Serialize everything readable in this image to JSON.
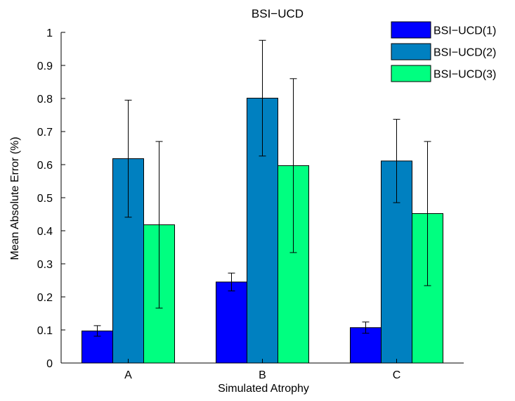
{
  "chart_data": {
    "type": "bar",
    "title": "BSI−UCD",
    "xlabel": "Simulated Atrophy",
    "ylabel": "Mean Absolute Error (%)",
    "categories": [
      "A",
      "B",
      "C"
    ],
    "ylim": [
      0,
      1
    ],
    "yticks": [
      0,
      0.1,
      0.2,
      0.3,
      0.4,
      0.5,
      0.6,
      0.7,
      0.8,
      0.9,
      1
    ],
    "ytick_labels": [
      "0",
      "0.1",
      "0.2",
      "0.3",
      "0.4",
      "0.5",
      "0.6",
      "0.7",
      "0.8",
      "0.9",
      "1"
    ],
    "grid": false,
    "legend_position": "top-right",
    "series": [
      {
        "name": "BSI−UCD(1)",
        "color": "#0000ff",
        "values": [
          0.097,
          0.245,
          0.107
        ],
        "errors": [
          0.016,
          0.027,
          0.017
        ]
      },
      {
        "name": "BSI−UCD(2)",
        "color": "#0080c0",
        "values": [
          0.618,
          0.801,
          0.611
        ],
        "errors": [
          0.177,
          0.175,
          0.126
        ]
      },
      {
        "name": "BSI−UCD(3)",
        "color": "#00ff80",
        "values": [
          0.418,
          0.597,
          0.452
        ],
        "errors": [
          0.252,
          0.263,
          0.218
        ]
      }
    ]
  }
}
